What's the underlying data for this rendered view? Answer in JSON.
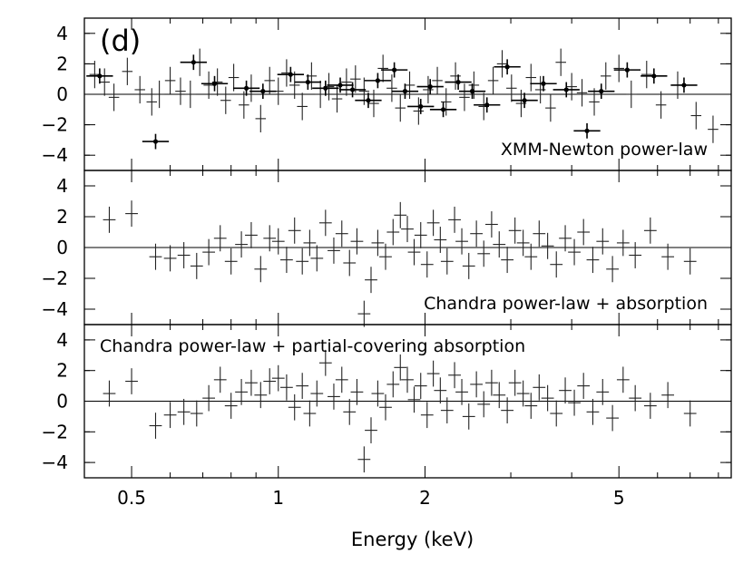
{
  "chart_data": {
    "type": "scatter",
    "tag": "(d)",
    "xlabel": "Energy (keV)",
    "xscale": "log",
    "xlim": [
      0.4,
      8.5
    ],
    "xticks": [
      {
        "value": 0.5,
        "label": "0.5"
      },
      {
        "value": 1,
        "label": "1"
      },
      {
        "value": 2,
        "label": "2"
      },
      {
        "value": 5,
        "label": "5"
      }
    ],
    "panels": [
      {
        "name": "xmm-power-law",
        "label": "XMM-Newton power-law",
        "label_position": "bottom-right",
        "ylim": [
          -5,
          5
        ],
        "yticks": [
          "4",
          "2",
          "0",
          "−2",
          "−4"
        ],
        "ytick_values": [
          4,
          2,
          0,
          -2,
          -4
        ],
        "series": [
          {
            "name": "XMM-Newton data",
            "x": [
              0.42,
              0.44,
              0.46,
              0.49,
              0.52,
              0.55,
              0.57,
              0.6,
              0.63,
              0.66,
              0.69,
              0.72,
              0.75,
              0.78,
              0.81,
              0.85,
              0.88,
              0.92,
              0.96,
              1.0,
              1.04,
              1.08,
              1.12,
              1.17,
              1.22,
              1.27,
              1.32,
              1.38,
              1.44,
              1.5,
              1.57,
              1.64,
              1.71,
              1.78,
              1.86,
              1.94,
              2.03,
              2.12,
              2.21,
              2.31,
              2.41,
              2.52,
              2.64,
              2.76,
              2.88,
              3.01,
              3.15,
              3.3,
              3.45,
              3.62,
              3.8,
              4.0,
              4.2,
              4.45,
              4.7,
              5.0,
              5.3,
              5.7,
              6.1,
              6.6,
              7.2,
              7.8
            ],
            "y": [
              1.3,
              0.8,
              -0.2,
              1.5,
              0.3,
              -0.5,
              0.0,
              0.9,
              0.2,
              0.0,
              2.1,
              0.6,
              0.8,
              -0.4,
              1.1,
              -0.7,
              0.4,
              -1.6,
              0.9,
              0.2,
              1.4,
              0.6,
              -0.8,
              1.2,
              0.0,
              0.5,
              -0.3,
              0.8,
              1.0,
              0.2,
              -0.6,
              1.7,
              0.4,
              -0.9,
              0.6,
              -1.1,
              0.3,
              0.9,
              -0.5,
              1.2,
              -0.2,
              0.6,
              -0.8,
              0.9,
              2.0,
              0.4,
              -0.6,
              1.1,
              0.3,
              -0.9,
              2.1,
              0.5,
              0.1,
              -0.5,
              1.2,
              1.7,
              0.0,
              1.3,
              -0.7,
              0.6,
              -1.4,
              -2.3
            ],
            "yerr": 0.9,
            "xerr_frac": 0.025
          },
          {
            "name": "XMM-Newton highlighted",
            "x": [
              0.43,
              0.56,
              0.67,
              0.74,
              0.86,
              0.93,
              1.06,
              1.15,
              1.25,
              1.34,
              1.42,
              1.53,
              1.6,
              1.73,
              1.82,
              1.96,
              2.05,
              2.18,
              2.34,
              2.5,
              2.68,
              2.95,
              3.2,
              3.5,
              3.9,
              4.3,
              4.6,
              5.2,
              5.9,
              6.8
            ],
            "y": [
              1.2,
              -3.1,
              2.1,
              0.7,
              0.4,
              0.2,
              1.3,
              0.8,
              0.4,
              0.6,
              0.3,
              -0.4,
              0.9,
              1.6,
              0.2,
              -0.8,
              0.5,
              -1.0,
              0.8,
              0.2,
              -0.7,
              1.8,
              -0.4,
              0.7,
              0.3,
              -2.4,
              0.2,
              1.6,
              1.2,
              0.6
            ],
            "yerr": 0.5,
            "xerr_frac": 0.04
          }
        ]
      },
      {
        "name": "chandra-power-law-absorption",
        "label": "Chandra power-law + absorption",
        "label_position": "bottom-right",
        "ylim": [
          -5,
          5
        ],
        "yticks": [
          "4",
          "2",
          "0",
          "−2",
          "−4"
        ],
        "ytick_values": [
          4,
          2,
          0,
          -2,
          -4
        ],
        "series": [
          {
            "name": "Chandra data",
            "x": [
              0.45,
              0.5,
              0.56,
              0.6,
              0.64,
              0.68,
              0.72,
              0.76,
              0.8,
              0.84,
              0.88,
              0.92,
              0.96,
              1.0,
              1.04,
              1.08,
              1.12,
              1.16,
              1.2,
              1.25,
              1.3,
              1.35,
              1.4,
              1.45,
              1.5,
              1.55,
              1.6,
              1.66,
              1.72,
              1.78,
              1.84,
              1.9,
              1.96,
              2.02,
              2.08,
              2.15,
              2.22,
              2.3,
              2.38,
              2.46,
              2.55,
              2.64,
              2.74,
              2.84,
              2.95,
              3.06,
              3.18,
              3.3,
              3.43,
              3.57,
              3.72,
              3.88,
              4.05,
              4.23,
              4.42,
              4.63,
              4.85,
              5.1,
              5.4,
              5.8,
              6.3,
              7.0
            ],
            "y": [
              1.8,
              2.2,
              -0.6,
              -0.7,
              -0.5,
              -1.2,
              -0.3,
              0.6,
              -0.9,
              0.2,
              0.8,
              -1.4,
              0.6,
              0.4,
              -0.8,
              1.1,
              -0.9,
              0.3,
              -0.7,
              1.6,
              -0.2,
              0.9,
              -1.0,
              0.4,
              -4.3,
              -2.1,
              0.3,
              -0.6,
              1.0,
              2.1,
              1.2,
              -0.3,
              0.8,
              -1.1,
              1.6,
              0.5,
              -0.9,
              1.8,
              0.4,
              -1.2,
              0.9,
              -0.4,
              1.5,
              0.2,
              -0.8,
              1.1,
              0.3,
              -0.6,
              0.9,
              0.1,
              -1.1,
              0.6,
              -0.3,
              1.0,
              -0.8,
              0.4,
              -1.4,
              0.3,
              -0.5,
              1.1,
              -0.6,
              -0.9
            ],
            "yerr": 0.85,
            "xerr_frac": 0.03
          }
        ]
      },
      {
        "name": "chandra-partial-covering",
        "label": "Chandra power-law + partial-covering absorption",
        "label_position": "top-left",
        "ylim": [
          -5,
          5
        ],
        "yticks": [
          "4",
          "2",
          "0",
          "−2",
          "−4"
        ],
        "ytick_values": [
          4,
          2,
          0,
          -2,
          -4
        ],
        "series": [
          {
            "name": "Chandra data",
            "x": [
              0.45,
              0.5,
              0.56,
              0.6,
              0.64,
              0.68,
              0.72,
              0.76,
              0.8,
              0.84,
              0.88,
              0.92,
              0.96,
              1.0,
              1.04,
              1.08,
              1.12,
              1.16,
              1.2,
              1.25,
              1.3,
              1.35,
              1.4,
              1.45,
              1.5,
              1.55,
              1.6,
              1.66,
              1.72,
              1.78,
              1.84,
              1.9,
              1.96,
              2.02,
              2.08,
              2.15,
              2.22,
              2.3,
              2.38,
              2.46,
              2.55,
              2.64,
              2.74,
              2.84,
              2.95,
              3.06,
              3.18,
              3.3,
              3.43,
              3.57,
              3.72,
              3.88,
              4.05,
              4.23,
              4.42,
              4.63,
              4.85,
              5.1,
              5.4,
              5.8,
              6.3,
              7.0
            ],
            "y": [
              0.5,
              1.3,
              -1.6,
              -0.9,
              -0.7,
              -0.8,
              0.2,
              1.4,
              -0.3,
              0.6,
              1.2,
              0.4,
              1.3,
              1.5,
              0.9,
              -0.4,
              1.0,
              -0.8,
              0.5,
              2.5,
              0.3,
              1.4,
              -0.7,
              0.6,
              -3.8,
              -1.9,
              0.5,
              -0.4,
              1.1,
              2.2,
              1.4,
              0.1,
              1.0,
              -0.9,
              1.8,
              0.7,
              -0.6,
              1.7,
              0.6,
              -1.0,
              1.1,
              -0.2,
              1.2,
              0.4,
              -0.6,
              1.2,
              0.5,
              -0.3,
              0.9,
              0.2,
              -0.8,
              0.7,
              -0.1,
              1.0,
              -0.7,
              0.6,
              -1.1,
              1.4,
              0.2,
              -0.3,
              0.4,
              -0.8
            ],
            "yerr": 0.85,
            "xerr_frac": 0.03
          }
        ]
      }
    ]
  }
}
